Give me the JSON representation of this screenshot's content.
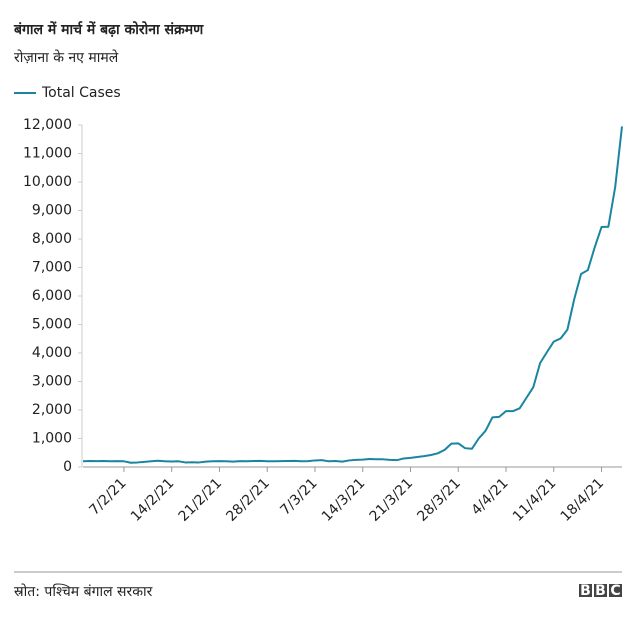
{
  "chart_data": {
    "type": "line",
    "title": "बंगाल में मार्च में बढ़ा कोरोना संक्रमण",
    "subtitle": "रोज़ाना के नए मामले",
    "categories": [
      null,
      null,
      null,
      null,
      null,
      null,
      "7/2/21",
      null,
      null,
      null,
      null,
      null,
      null,
      "14/2/21",
      null,
      null,
      null,
      null,
      null,
      null,
      "21/2/21",
      null,
      null,
      null,
      null,
      null,
      null,
      "28/2/21",
      null,
      null,
      null,
      null,
      null,
      null,
      "7/3/21",
      null,
      null,
      null,
      null,
      null,
      null,
      "14/3/21",
      null,
      null,
      null,
      null,
      null,
      null,
      "21/3/21",
      null,
      null,
      null,
      null,
      null,
      null,
      "28/3/21",
      null,
      null,
      null,
      null,
      null,
      null,
      "4/4/21",
      null,
      null,
      null,
      null,
      null,
      null,
      "11/4/21",
      null,
      null,
      null,
      null,
      null,
      null,
      "18/4/21",
      null,
      null,
      null
    ],
    "series": [
      {
        "name": "Total Cases",
        "color": "#1a85a0",
        "values": [
          200,
          210,
          205,
          210,
          200,
          205,
          200,
          150,
          160,
          180,
          200,
          220,
          200,
          195,
          200,
          160,
          165,
          160,
          190,
          200,
          205,
          200,
          190,
          205,
          200,
          210,
          215,
          200,
          200,
          205,
          210,
          215,
          200,
          205,
          230,
          240,
          200,
          210,
          190,
          230,
          250,
          260,
          280,
          270,
          270,
          250,
          240,
          300,
          320,
          350,
          380,
          420,
          480,
          600,
          820,
          830,
          660,
          640,
          1000,
          1270,
          1740,
          1760,
          1960,
          1960,
          2060,
          2430,
          2800,
          3650,
          4030,
          4400,
          4510,
          4820,
          5890,
          6770,
          6910,
          7710,
          8420,
          8430,
          9820,
          11950
        ]
      }
    ],
    "ylim": [
      0,
      12000
    ],
    "yticks": [
      0,
      {
        "value": 1000,
        "label": "1,000"
      },
      {
        "value": 2000,
        "label": "2,000"
      },
      {
        "value": 3000,
        "label": "3,000"
      },
      {
        "value": 4000,
        "label": "4,000"
      },
      {
        "value": 5000,
        "label": "5,000"
      },
      {
        "value": 6000,
        "label": "6,000"
      },
      {
        "value": 7000,
        "label": "7,000"
      },
      {
        "value": 8000,
        "label": "8,000"
      },
      {
        "value": 9000,
        "label": "9,000"
      },
      {
        "value": 10000,
        "label": "10,000"
      },
      {
        "value": 11000,
        "label": "11,000"
      },
      {
        "value": 12000,
        "label": "12,000"
      }
    ],
    "grid": false,
    "source": "स्रोत: पश्चिम बंगाल सरकार",
    "logo": [
      "B",
      "B",
      "C"
    ]
  }
}
